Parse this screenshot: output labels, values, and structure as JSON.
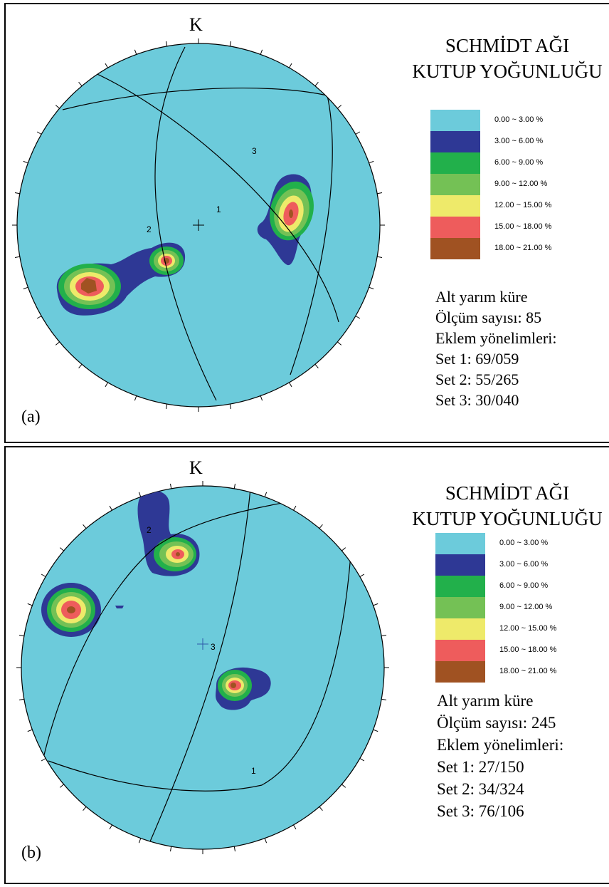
{
  "panels": [
    {
      "label": "(a)",
      "north_label": "K",
      "title_line1": "SCHMİDT AĞI",
      "title_line2": "KUTUP YOĞUNLUĞU",
      "hemisphere": "Alt yarım küre",
      "measurement_count": "Ölçüm sayısı: 85",
      "joint_orientations_label": "Eklem yönelimleri:",
      "sets": [
        "Set 1: 69/059",
        "Set 2: 55/265",
        "Set 3: 30/040"
      ],
      "great_circle_labels": [
        "1",
        "2",
        "3"
      ]
    },
    {
      "label": "(b)",
      "north_label": "K",
      "title_line1": "SCHMİDT AĞI",
      "title_line2": "KUTUP YOĞUNLUĞU",
      "hemisphere": "Alt yarım küre",
      "measurement_count": "Ölçüm sayısı: 245",
      "joint_orientations_label": "Eklem yönelimleri:",
      "sets": [
        "Set 1: 27/150",
        "Set 2: 34/324",
        "Set 3: 76/106"
      ],
      "great_circle_labels": [
        "1",
        "2",
        "3"
      ]
    }
  ],
  "legend": [
    {
      "range": "0.00 ~  3.00 %",
      "color": "#6ccbdb"
    },
    {
      "range": "3.00 ~  6.00 %",
      "color": "#2e3895"
    },
    {
      "range": "6.00 ~  9.00 %",
      "color": "#22b04b"
    },
    {
      "range": "9.00 ~ 12.00 %",
      "color": "#74c155"
    },
    {
      "range": "12.00 ~ 15.00 %",
      "color": "#eeea6a"
    },
    {
      "range": "15.00 ~ 18.00 %",
      "color": "#ee5c5c"
    },
    {
      "range": "18.00 ~ 21.00 %",
      "color": "#a05222"
    }
  ]
}
